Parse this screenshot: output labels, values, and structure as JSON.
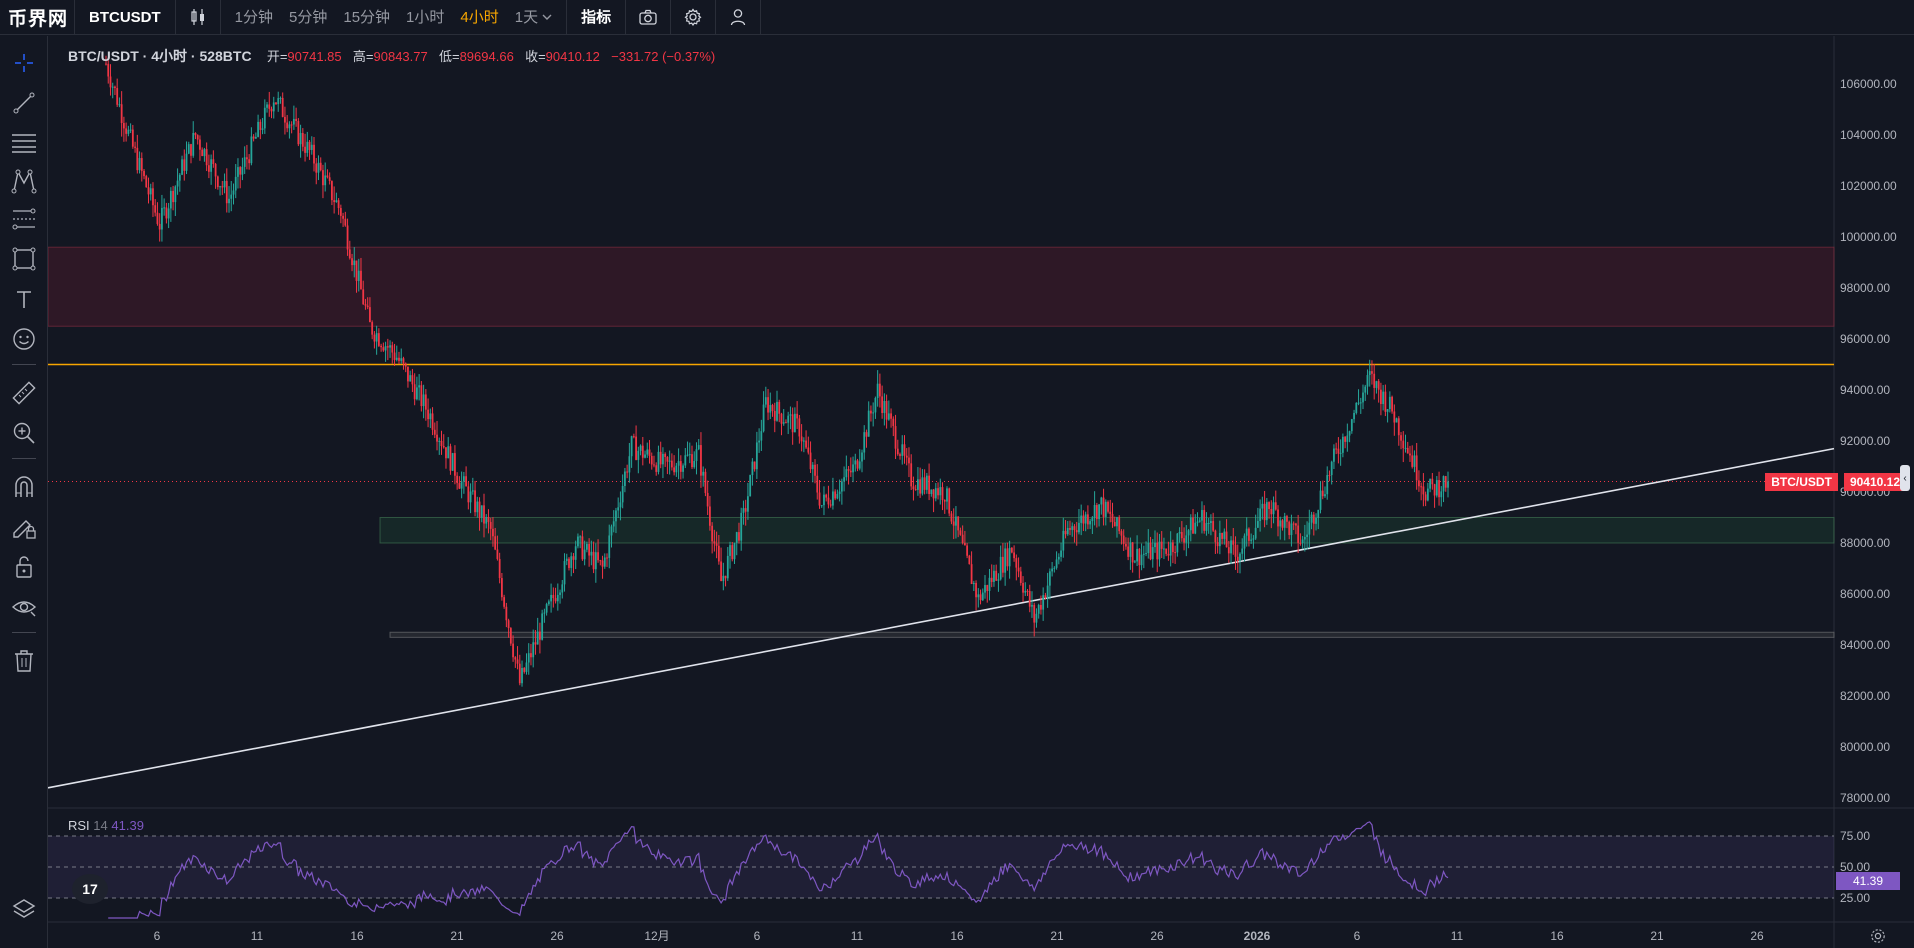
{
  "app": {
    "logo_text": "币界网"
  },
  "topbar": {
    "symbol": "BTCUSDT",
    "chart_type_icon": "candles-icon",
    "timeframes": [
      "1分钟",
      "5分钟",
      "15分钟",
      "1小时",
      "4小时",
      "1天"
    ],
    "active_timeframe": "4小时",
    "indicators_label": "指标",
    "camera_icon": "camera-icon",
    "settings_icon": "gear-icon",
    "user_icon": "user-icon"
  },
  "legend": {
    "symbol": "BTC/USDT · 4小时 · 528BTC",
    "open_label": "开=",
    "open": "90741.85",
    "high_label": "高=",
    "high": "90843.77",
    "low_label": "低=",
    "low": "89694.66",
    "close_label": "收=",
    "close": "90410.12",
    "change": "−331.72 (−0.37%)"
  },
  "price_tag": {
    "name": "BTC/USDT",
    "value": "90410.12"
  },
  "rsi": {
    "label": "RSI",
    "period": "14",
    "value": "41.39",
    "tag": "41.39"
  },
  "tools": [
    "crosshair-icon",
    "trendline-icon",
    "horizontal-lines-icon",
    "pattern-icon",
    "fib-icon",
    "rectangle-icon",
    "text-icon",
    "emoji-icon",
    "ruler-icon",
    "zoom-icon",
    "magnet-icon",
    "lock-draw-icon",
    "lock-icon",
    "eye-icon",
    "trash-icon"
  ],
  "colors": {
    "bg": "#131722",
    "up": "#26a69a",
    "down": "#f23645",
    "resistance_line": "#f7a600",
    "rsi": "#7e57c2",
    "accent": "#f7a600"
  },
  "chart_data": {
    "type": "candlestick",
    "symbol": "BTC/USDT",
    "interval": "4小时",
    "y_axis_labels": [
      "106000.00",
      "104000.00",
      "102000.00",
      "100000.00",
      "98000.00",
      "96000.00",
      "94000.00",
      "92000.00",
      "90000.00",
      "88000.00",
      "86000.00",
      "84000.00",
      "82000.00",
      "80000.00",
      "78000.00"
    ],
    "x_axis_labels": [
      "6",
      "11",
      "16",
      "21",
      "26",
      "12月",
      "6",
      "11",
      "16",
      "21",
      "26",
      "2026",
      "6",
      "11",
      "16",
      "21",
      "26"
    ],
    "ylim": [
      77500,
      107500
    ],
    "last_price": 90410.12,
    "resistance_level": 95000,
    "zones": [
      {
        "kind": "supply",
        "from": 96500,
        "to": 99600
      },
      {
        "kind": "demand",
        "from": 88000,
        "to": 89000
      },
      {
        "kind": "support",
        "from": 84300,
        "to": 84500
      }
    ],
    "trendline": {
      "from": {
        "x": "start",
        "y": 78400
      },
      "to": {
        "x": "end",
        "y": 91700
      }
    },
    "path_keypoints": [
      {
        "i": 0,
        "p": 106800
      },
      {
        "i": 12,
        "p": 103500
      },
      {
        "i": 24,
        "p": 100500
      },
      {
        "i": 40,
        "p": 104000
      },
      {
        "i": 55,
        "p": 101500
      },
      {
        "i": 75,
        "p": 105500
      },
      {
        "i": 92,
        "p": 103200
      },
      {
        "i": 105,
        "p": 101000
      },
      {
        "i": 118,
        "p": 96500
      },
      {
        "i": 130,
        "p": 95300
      },
      {
        "i": 145,
        "p": 93000
      },
      {
        "i": 158,
        "p": 90500
      },
      {
        "i": 172,
        "p": 88500
      },
      {
        "i": 185,
        "p": 82500
      },
      {
        "i": 195,
        "p": 84800
      },
      {
        "i": 210,
        "p": 88000
      },
      {
        "i": 222,
        "p": 87000
      },
      {
        "i": 235,
        "p": 91800
      },
      {
        "i": 250,
        "p": 91000
      },
      {
        "i": 265,
        "p": 91500
      },
      {
        "i": 275,
        "p": 86500
      },
      {
        "i": 285,
        "p": 89000
      },
      {
        "i": 295,
        "p": 93500
      },
      {
        "i": 310,
        "p": 92500
      },
      {
        "i": 320,
        "p": 89500
      },
      {
        "i": 335,
        "p": 91000
      },
      {
        "i": 345,
        "p": 94000
      },
      {
        "i": 360,
        "p": 90500
      },
      {
        "i": 375,
        "p": 90000
      },
      {
        "i": 390,
        "p": 85800
      },
      {
        "i": 405,
        "p": 87800
      },
      {
        "i": 415,
        "p": 85000
      },
      {
        "i": 430,
        "p": 88500
      },
      {
        "i": 445,
        "p": 89500
      },
      {
        "i": 460,
        "p": 87500
      },
      {
        "i": 475,
        "p": 87800
      },
      {
        "i": 490,
        "p": 89000
      },
      {
        "i": 505,
        "p": 87500
      },
      {
        "i": 520,
        "p": 89500
      },
      {
        "i": 535,
        "p": 88000
      },
      {
        "i": 550,
        "p": 91500
      },
      {
        "i": 565,
        "p": 94500
      },
      {
        "i": 575,
        "p": 93200
      },
      {
        "i": 590,
        "p": 90000
      },
      {
        "i": 600,
        "p": 90400
      }
    ],
    "rsi_levels": [
      75,
      50,
      25
    ],
    "rsi_axis_labels": [
      "75.00",
      "50.00",
      "25.00"
    ],
    "rsi_last": 41.39
  }
}
